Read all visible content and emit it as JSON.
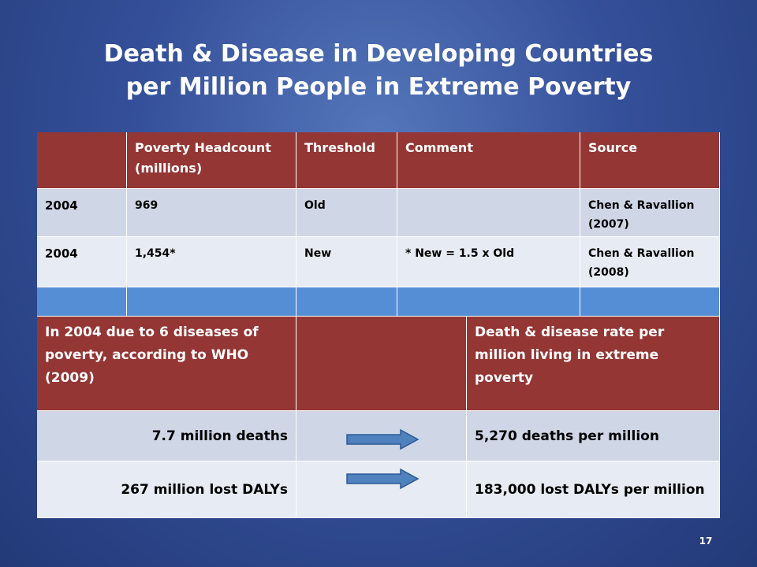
{
  "slide": {
    "title_line1": "Death & Disease in Developing Countries",
    "title_line2": "per Million People in Extreme Poverty",
    "page_number": "17"
  },
  "table1": {
    "headers": [
      "",
      "Poverty  Headcount (millions)",
      "Threshold",
      "Comment",
      "Source"
    ],
    "rows": [
      [
        "2004",
        "969",
        "Old",
        "",
        "Chen & Ravallion (2007)"
      ],
      [
        "2004",
        "1,454*",
        "New",
        "* New = 1.5 x Old",
        "Chen & Ravallion (2008)"
      ]
    ]
  },
  "table2": {
    "header_left": "In 2004 due to 6 diseases of poverty, according to WHO (2009)",
    "header_right": "Death & disease rate per million living in extreme poverty",
    "rows": [
      {
        "left": "7.7 million deaths",
        "right": "5,270 deaths per million"
      },
      {
        "left": "267 million lost DALYs",
        "right": "183,000 lost DALYs per million"
      }
    ]
  },
  "colors": {
    "header_red": "#943634",
    "row_light": "#cfd6e6",
    "row_lighter": "#e7ebf4",
    "blue_band": "#558ed5",
    "arrow": "#4f81bd"
  },
  "icons": {
    "row_arrow": "right-arrow-icon"
  }
}
